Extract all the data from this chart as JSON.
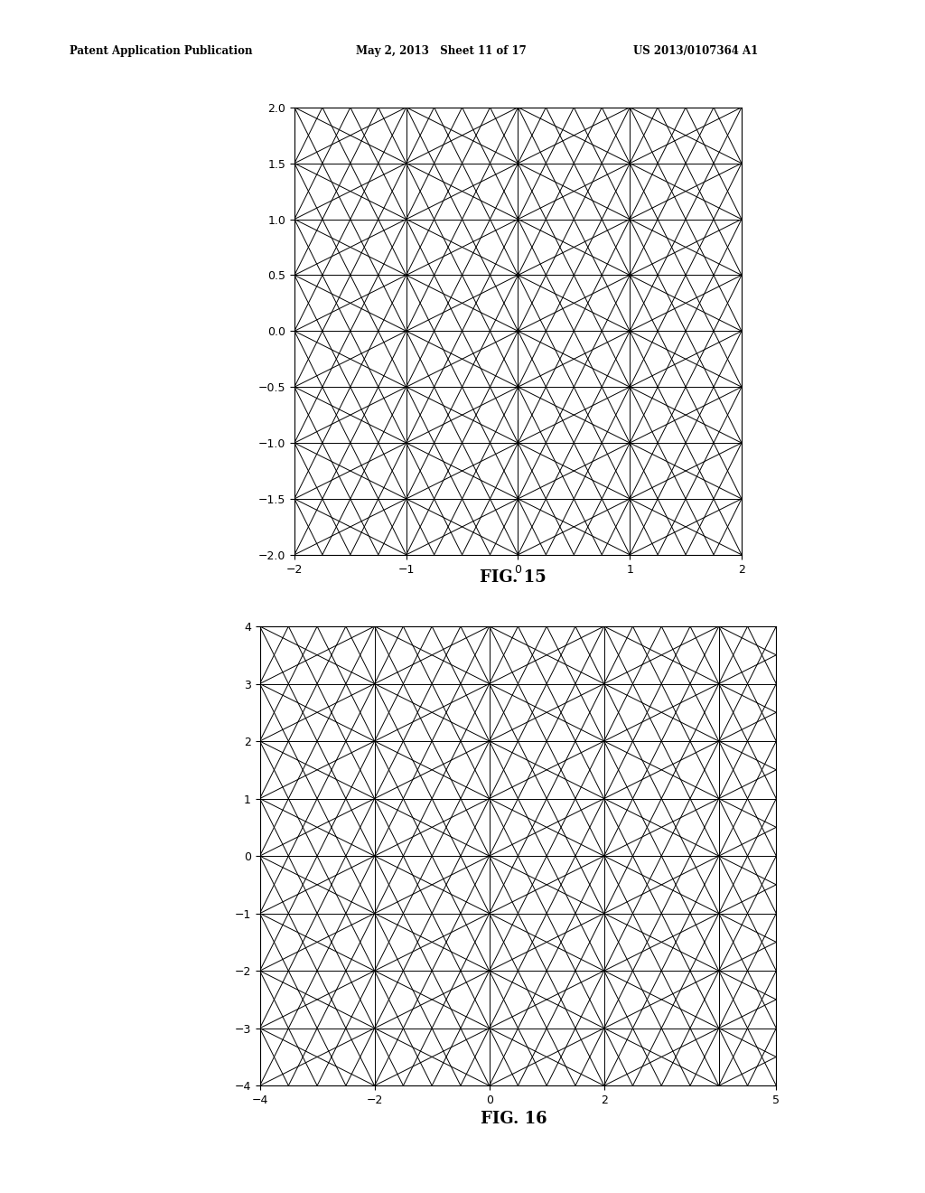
{
  "header_left": "Patent Application Publication",
  "header_mid": "May 2, 2013   Sheet 11 of 17",
  "header_right": "US 2013/0107364 A1",
  "fig15_label": "FIG. 15",
  "fig16_label": "FIG. 16",
  "fig15_xlim": [
    -2,
    2
  ],
  "fig15_ylim": [
    -2,
    2
  ],
  "fig15_xticks": [
    -2,
    -1,
    0,
    1,
    2
  ],
  "fig15_yticks": [
    -2,
    -1.5,
    -1,
    -0.5,
    0,
    0.5,
    1,
    1.5,
    2
  ],
  "fig16_xlim": [
    -4,
    5
  ],
  "fig16_ylim": [
    -4,
    4
  ],
  "fig16_xticks": [
    -4,
    -2,
    0,
    2,
    5
  ],
  "fig16_yticks": [
    -4,
    -3,
    -2,
    -1,
    0,
    1,
    2,
    3,
    4
  ],
  "line_color": "#000000",
  "line_width": 0.7,
  "background_color": "#ffffff"
}
